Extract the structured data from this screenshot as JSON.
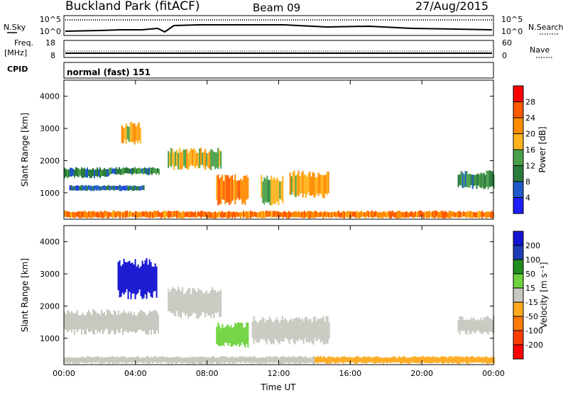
{
  "header": {
    "station": "Buckland Park (fitACF)",
    "beam": "Beam 09",
    "date": "27/Aug/2015"
  },
  "noise_panel": {
    "left_label": "N.Sky",
    "right_label": "N.Search",
    "ticks_left": [
      "10^5",
      "10^0"
    ],
    "ticks_right": [
      "10^5",
      "10^0"
    ]
  },
  "freq_panel": {
    "left_label_1": "Freq.",
    "left_label_2": "[MHz]",
    "right_label": "Nave",
    "ticks_left": [
      "18",
      "8"
    ],
    "ticks_right": [
      "60",
      "0"
    ]
  },
  "cpid_panel": {
    "label": "CPID",
    "value": "normal (fast) 151"
  },
  "colors": {
    "power_scale": [
      "#1e1eff",
      "#1e5ac8",
      "#2a7a3c",
      "#4aa04a",
      "#ffb41e",
      "#ff8c00",
      "#ff5a00",
      "#ff0000"
    ],
    "velocity_scale": [
      "#1414d2",
      "#1e3cb4",
      "#1e8c1e",
      "#6ed23c",
      "#c8c8c0",
      "#ffaa1e",
      "#ff780a",
      "#ff3c00",
      "#ff0000"
    ]
  },
  "chart_data": [
    {
      "type": "heatmap",
      "title": "",
      "ylabel": "Slant Range [km]",
      "xlabel": "",
      "x_ticks": [
        "00:00",
        "04:00",
        "08:00",
        "12:00",
        "16:00",
        "20:00",
        "00:00"
      ],
      "xlim_hours": [
        0,
        24
      ],
      "y_ticks": [
        1000,
        2000,
        3000,
        4000
      ],
      "ylim": [
        180,
        4500
      ],
      "colorbar": {
        "label": "Power [dB]",
        "ticks": [
          4,
          8,
          12,
          16,
          20,
          24,
          28
        ],
        "range": [
          0,
          30
        ]
      },
      "regions": [
        {
          "t0": 0.0,
          "t1": 24.0,
          "r0": 200,
          "r1": 450,
          "value": 22
        },
        {
          "t0": 0.0,
          "t1": 2.5,
          "r0": 1450,
          "r1": 1800,
          "value": 9
        },
        {
          "t0": 2.5,
          "t1": 5.3,
          "r0": 1550,
          "r1": 1800,
          "value": 10
        },
        {
          "t0": 0.3,
          "t1": 4.5,
          "r0": 1050,
          "r1": 1250,
          "value": 7
        },
        {
          "t0": 3.2,
          "t1": 4.3,
          "r0": 2500,
          "r1": 3200,
          "value": 18
        },
        {
          "t0": 5.8,
          "t1": 8.8,
          "r0": 1700,
          "r1": 2400,
          "value": 16
        },
        {
          "t0": 8.5,
          "t1": 10.3,
          "r0": 600,
          "r1": 1600,
          "value": 22
        },
        {
          "t0": 11.0,
          "t1": 12.2,
          "r0": 600,
          "r1": 1600,
          "value": 14
        },
        {
          "t0": 12.6,
          "t1": 14.8,
          "r0": 800,
          "r1": 1700,
          "value": 18
        },
        {
          "t0": 22.0,
          "t1": 24.0,
          "r0": 1100,
          "r1": 1700,
          "value": 10
        }
      ]
    },
    {
      "type": "heatmap",
      "title": "",
      "ylabel": "Slant Range [km]",
      "xlabel": "Time UT",
      "x_ticks": [
        "00:00",
        "04:00",
        "08:00",
        "12:00",
        "16:00",
        "20:00",
        "00:00"
      ],
      "xlim_hours": [
        0,
        24
      ],
      "y_ticks": [
        1000,
        2000,
        3000,
        4000
      ],
      "ylim": [
        180,
        4500
      ],
      "colorbar": {
        "label": "Velocity [m s⁻¹]",
        "ticks": [
          200,
          100,
          50,
          15,
          -15,
          -50,
          -100,
          -200
        ],
        "range": [
          -250,
          250
        ]
      },
      "regions": [
        {
          "t0": 0.0,
          "t1": 14.0,
          "r0": 200,
          "r1": 450,
          "value": 0
        },
        {
          "t0": 14.0,
          "t1": 24.0,
          "r0": 200,
          "r1": 450,
          "value": -60
        },
        {
          "t0": 0.0,
          "t1": 5.3,
          "r0": 1100,
          "r1": 1900,
          "value": 0
        },
        {
          "t0": 3.0,
          "t1": 5.2,
          "r0": 2200,
          "r1": 3500,
          "value": 220
        },
        {
          "t0": 5.8,
          "t1": 8.8,
          "r0": 1600,
          "r1": 2600,
          "value": 0
        },
        {
          "t0": 8.5,
          "t1": 10.3,
          "r0": 700,
          "r1": 1500,
          "value": 60
        },
        {
          "t0": 10.5,
          "t1": 14.8,
          "r0": 800,
          "r1": 1700,
          "value": 0
        },
        {
          "t0": 22.0,
          "t1": 24.0,
          "r0": 1100,
          "r1": 1700,
          "value": 0
        }
      ]
    }
  ]
}
